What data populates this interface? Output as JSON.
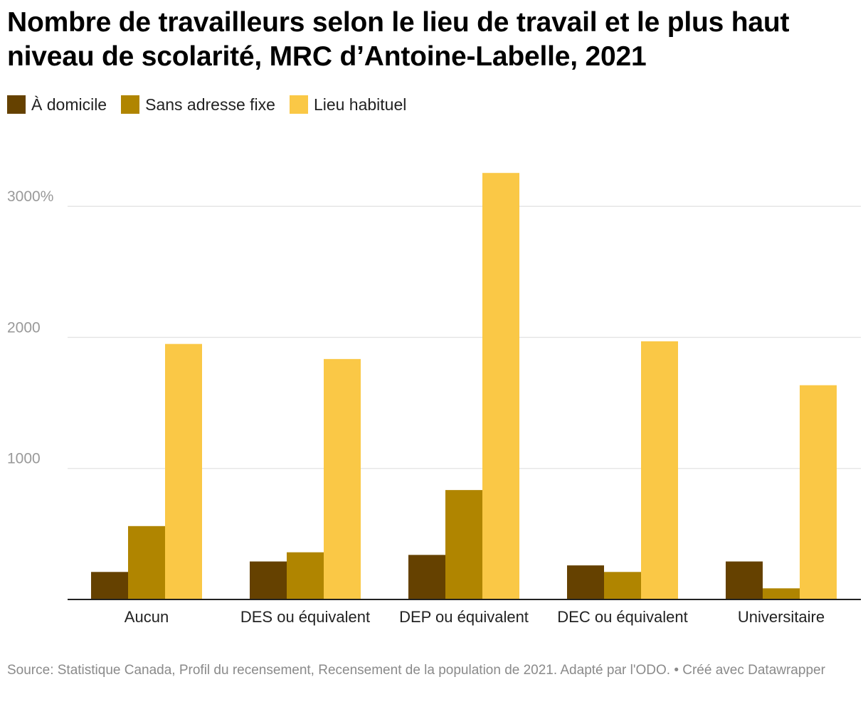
{
  "title": "Nombre de travailleurs selon le lieu de travail et le plus haut niveau de scolarité, MRC d’Antoine-Labelle, 2021",
  "footer": {
    "source": "Source: Statistique Canada, Profil du recensement, Recensement de la population de 2021. Adapté par l'ODO.",
    "separator": "•",
    "credit": "Créé avec Datawrapper"
  },
  "colors": {
    "grid": "#e3e3e3",
    "axis": "#222222",
    "tick": "#999999"
  },
  "chart_data": {
    "type": "bar",
    "title": "Nombre de travailleurs selon le lieu de travail et le plus haut niveau de scolarité, MRC d’Antoine-Labelle, 2021",
    "xlabel": "",
    "ylabel": "",
    "ylim": [
      0,
      3300
    ],
    "yticks": [
      1000,
      2000,
      3000
    ],
    "ytick_labels": [
      "1000",
      "2000",
      "3000%"
    ],
    "grid": true,
    "legend_position": "top-left",
    "categories": [
      "Aucun",
      "DES ou équivalent",
      "DEP ou équivalent",
      "DEC ou équivalent",
      "Universitaire"
    ],
    "series": [
      {
        "name": "À domicile",
        "color": "#654100",
        "values": [
          210,
          290,
          340,
          260,
          290
        ]
      },
      {
        "name": "Sans adresse fixe",
        "color": "#b08500",
        "values": [
          560,
          360,
          835,
          210,
          85
        ]
      },
      {
        "name": "Lieu habituel",
        "color": "#fac846",
        "values": [
          1950,
          1835,
          3255,
          1970,
          1635
        ]
      }
    ]
  }
}
